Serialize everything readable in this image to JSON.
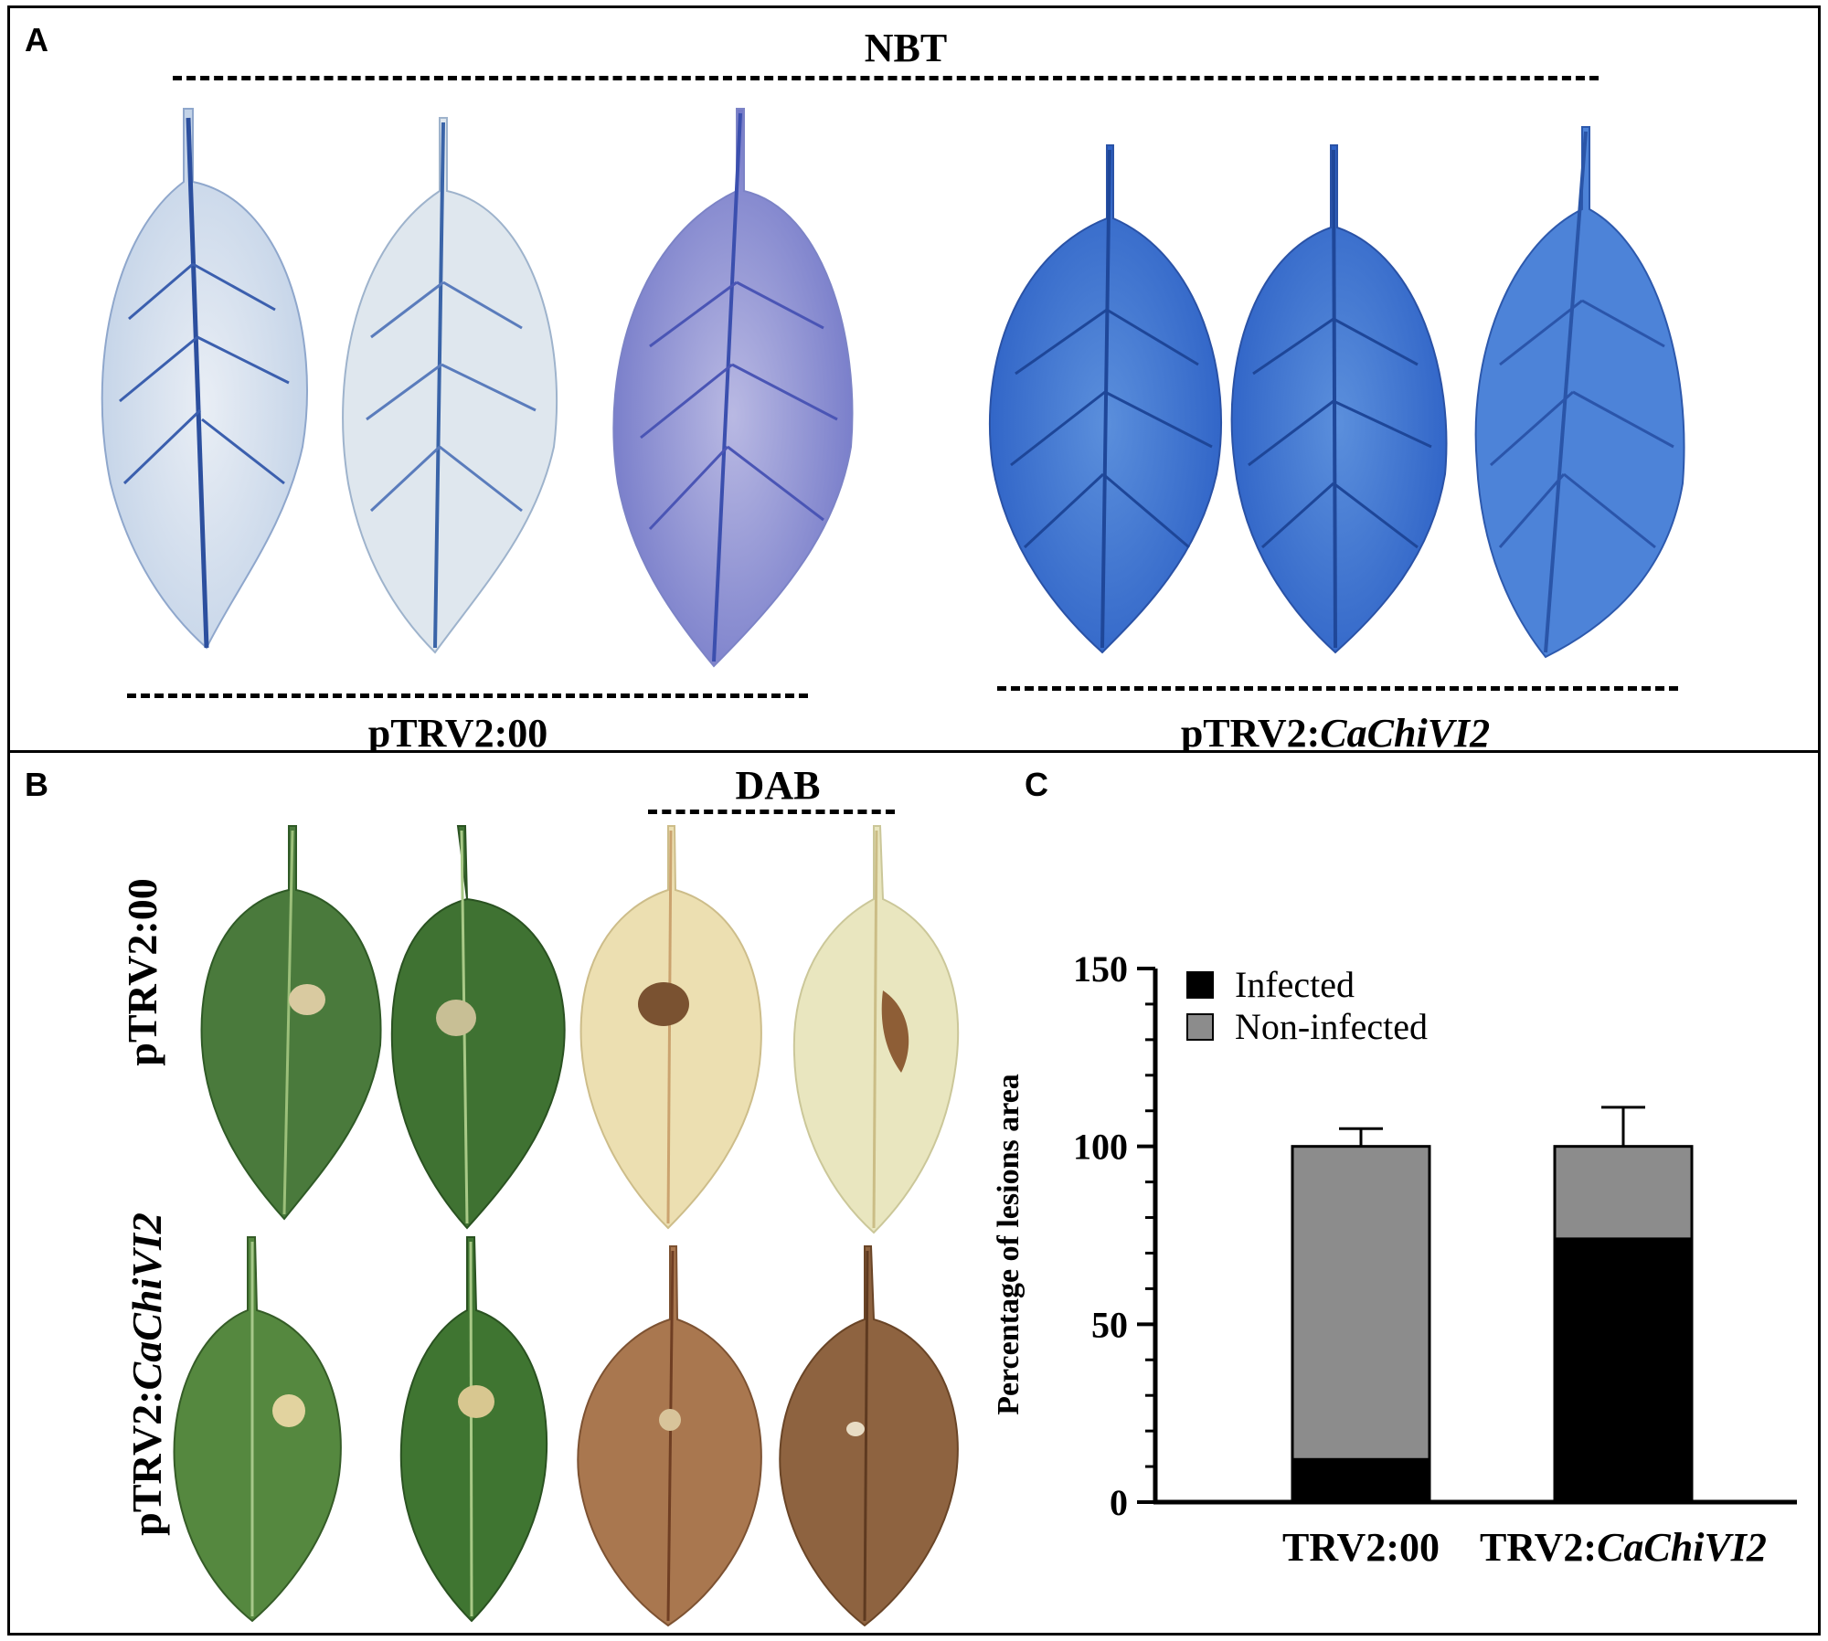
{
  "panelA": {
    "label": "A",
    "title": "NBT",
    "group_left": "pTRV2:00",
    "group_right_prefix": "pTRV2:",
    "group_right_gene": "CaChiVI2"
  },
  "panelB": {
    "label": "B",
    "title": "DAB",
    "row1_label": "pTRV2:00",
    "row2_prefix": "pTRV2:",
    "row2_gene": "CaChiVI2"
  },
  "panelC": {
    "label": "C"
  },
  "colors": {
    "infected": "#000000",
    "non_infected": "#8c8c8c",
    "nbt_light": "#c6d4e6",
    "nbt_dark": "#3a6fc8",
    "leaf_green": "#3e7a33",
    "dab_yellow": "#eadfae",
    "dab_brown": "#9b6a45"
  },
  "chart_data": {
    "type": "bar",
    "stacked": true,
    "categories": [
      "TRV2:00",
      "TRV2:CaChiVI2"
    ],
    "category_prefix": [
      "TRV2:",
      "TRV2:"
    ],
    "category_italic_part": [
      "",
      "CaChiVI2"
    ],
    "category_plain": [
      "TRV2:00",
      ""
    ],
    "series": [
      {
        "name": "Infected",
        "values": [
          12,
          74
        ],
        "error": [
          5,
          11
        ],
        "color": "#000000"
      },
      {
        "name": "Non-infected",
        "values": [
          88,
          26
        ],
        "error": [
          5,
          11
        ],
        "color": "#8c8c8c"
      }
    ],
    "ylabel": "Percentage of lesions area",
    "ylim": [
      0,
      150
    ],
    "yticks": [
      0,
      50,
      100,
      150
    ],
    "legend_position": "top-left"
  }
}
